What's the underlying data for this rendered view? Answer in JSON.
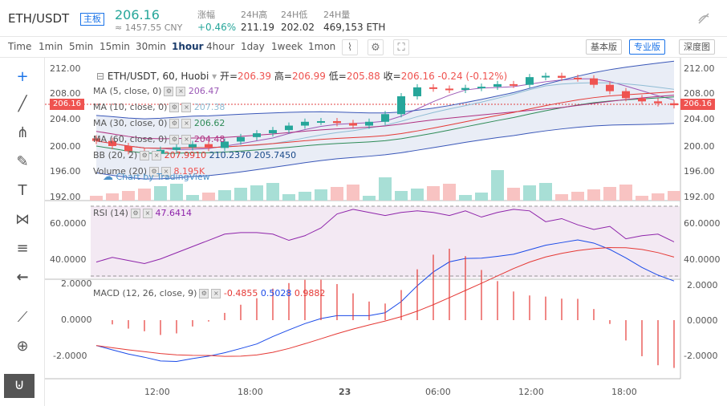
{
  "header": {
    "pair": "ETH/USDT",
    "tag": "主板",
    "price": "206.16",
    "cny": "≈ 1457.55 CNY",
    "stats": [
      {
        "label": "涨幅",
        "value": "+0.46%"
      },
      {
        "label": "24H高",
        "value": "211.19"
      },
      {
        "label": "24H低",
        "value": "202.02"
      },
      {
        "label": "24H量",
        "value": "469,153 ETH"
      }
    ]
  },
  "toolbar": {
    "intervals": [
      "Time",
      "1min",
      "5min",
      "15min",
      "30min",
      "1hour",
      "4hour",
      "1day",
      "1week",
      "1mon"
    ],
    "active_interval": "1hour",
    "basic_label": "基本版",
    "pro_label": "专业版",
    "depth_label": "深度图"
  },
  "chart": {
    "ohlc_title": "ETH/USDT, 60, Huobi",
    "open_label": "开=",
    "open": "206.39",
    "high_label": "高=",
    "high": "206.99",
    "low_label": "低=",
    "low": "205.88",
    "close_label": "收=",
    "close": "206.16",
    "change": "-0.24 (-0.12%)",
    "ma": [
      {
        "label": "MA (5, close, 0)",
        "value": "206.47",
        "color": "#9b59b6"
      },
      {
        "label": "MA (10, close, 0)",
        "value": "207.38",
        "color": "#8fbcd4"
      },
      {
        "label": "MA (30, close, 0)",
        "value": "206.62",
        "color": "#2e8b57"
      },
      {
        "label": "MA (60, close, 0)",
        "value": "204.48",
        "color": "#b03080"
      }
    ],
    "bb_label": "BB (20, 2)",
    "bb_values": [
      "207.9910",
      "210.2370",
      "205.7450"
    ],
    "bb_colors": [
      "#e53935",
      "#1a4a8a",
      "#1a4a8a"
    ],
    "volume_label": "Volume (20)",
    "volume_value": "8.195K",
    "watermark": "Chart by TradingView",
    "price_badge": "206.16",
    "price_ticks": [
      "212.00",
      "208.00",
      "204.00",
      "200.00",
      "196.00",
      "192.00"
    ],
    "rsi_label": "RSI (14)",
    "rsi_value": "47.6414",
    "rsi_ticks": [
      "60.0000",
      "40.0000"
    ],
    "macd_label": "MACD (12, 26, close, 9)",
    "macd_values": [
      "-0.4855",
      "0.5028",
      "0.9882"
    ],
    "macd_ticks": [
      "2.0000",
      "0.0000",
      "-2.0000"
    ],
    "time_ticks": [
      "12:00",
      "18:00",
      "23",
      "06:00",
      "12:00",
      "18:00"
    ]
  },
  "colors": {
    "up": "#26a69a",
    "down": "#ef5350",
    "accent": "#1a73e8"
  }
}
